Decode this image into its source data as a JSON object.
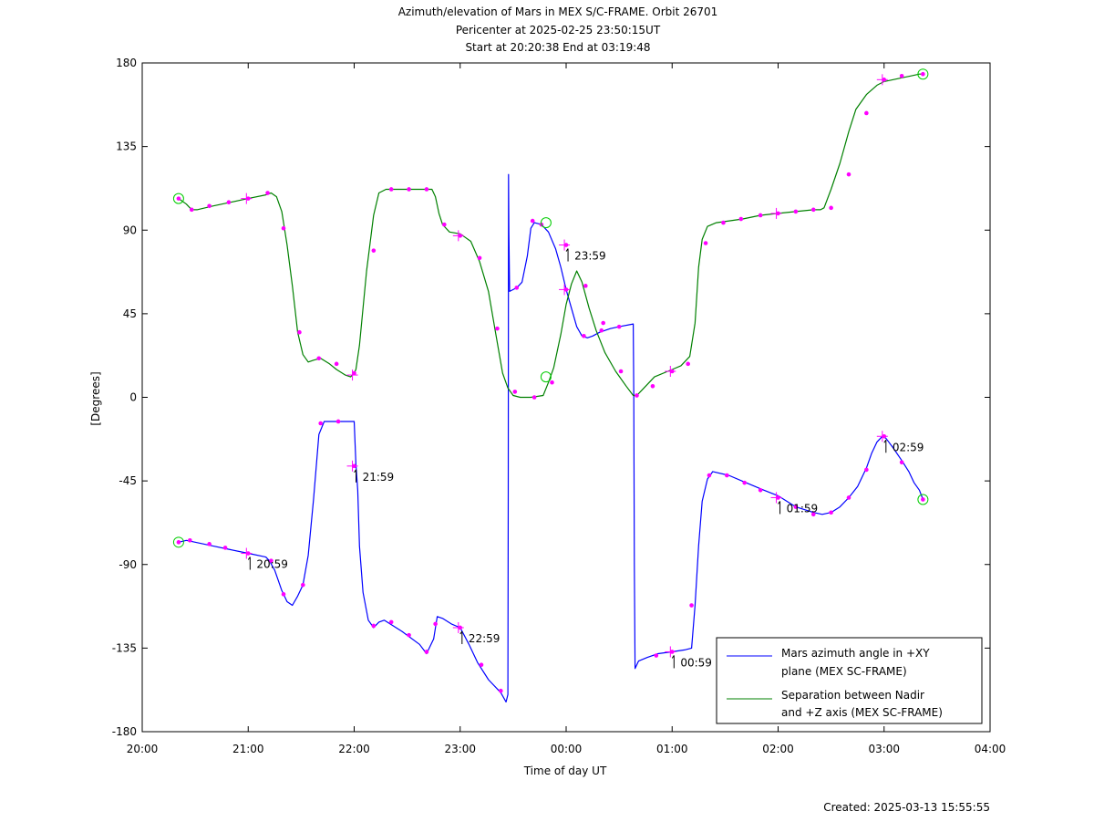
{
  "chart_data": {
    "type": "line",
    "title_lines": [
      "Azimuth/elevation of Mars in MEX S/C-FRAME.  Orbit 26701",
      "Pericenter at 2025-02-25 23:50:15UT",
      "Start at 20:20:38 End at 03:19:48"
    ],
    "xlabel": "Time of day UT",
    "ylabel": "[Degrees]",
    "footer": "Created: 2025-03-13 15:55:55",
    "xlim": [
      0,
      480
    ],
    "ylim": [
      -180,
      180
    ],
    "x_ticks": [
      {
        "v": 0,
        "label": "20:00"
      },
      {
        "v": 60,
        "label": "21:00"
      },
      {
        "v": 120,
        "label": "22:00"
      },
      {
        "v": 180,
        "label": "23:00"
      },
      {
        "v": 240,
        "label": "00:00"
      },
      {
        "v": 300,
        "label": "01:00"
      },
      {
        "v": 360,
        "label": "02:00"
      },
      {
        "v": 420,
        "label": "03:00"
      },
      {
        "v": 480,
        "label": "04:00"
      }
    ],
    "y_ticks": [
      {
        "v": 180,
        "label": "180"
      },
      {
        "v": 135,
        "label": "135"
      },
      {
        "v": 90,
        "label": "90"
      },
      {
        "v": 45,
        "label": "45"
      },
      {
        "v": 0,
        "label": "0"
      },
      {
        "v": -45,
        "label": "-45"
      },
      {
        "v": -90,
        "label": "-90"
      },
      {
        "v": -135,
        "label": "-135"
      },
      {
        "v": -180,
        "label": "-180"
      }
    ],
    "legend_position": "bottom-right",
    "series": [
      {
        "name": "Mars azimuth angle in +XY plane (MEX SC-FRAME)",
        "legend_lines": [
          "Mars azimuth angle in +XY",
          "plane (MEX SC-FRAME)"
        ],
        "color": "#0000ff",
        "points": [
          [
            20.6,
            -78
          ],
          [
            25,
            -77
          ],
          [
            30,
            -78
          ],
          [
            40,
            -80
          ],
          [
            50,
            -82
          ],
          [
            60,
            -84
          ],
          [
            70,
            -86
          ],
          [
            72,
            -88
          ],
          [
            75,
            -93
          ],
          [
            79,
            -104
          ],
          [
            82,
            -110
          ],
          [
            85,
            -112
          ],
          [
            88,
            -107
          ],
          [
            91,
            -101
          ],
          [
            94,
            -85
          ],
          [
            97,
            -55
          ],
          [
            100,
            -20
          ],
          [
            103,
            -13
          ],
          [
            110,
            -13
          ],
          [
            120,
            -13
          ],
          [
            121,
            -36
          ],
          [
            122,
            -50
          ],
          [
            123,
            -80
          ],
          [
            125,
            -105
          ],
          [
            128,
            -120
          ],
          [
            131,
            -124
          ],
          [
            134,
            -121
          ],
          [
            137,
            -120
          ],
          [
            147,
            -126
          ],
          [
            157,
            -133
          ],
          [
            161,
            -138
          ],
          [
            165,
            -130
          ],
          [
            167,
            -118
          ],
          [
            170,
            -119
          ],
          [
            175,
            -122
          ],
          [
            180,
            -124
          ],
          [
            185,
            -133
          ],
          [
            190,
            -143
          ],
          [
            196,
            -152
          ],
          [
            203,
            -159
          ],
          [
            206,
            -164
          ],
          [
            207,
            -160
          ],
          [
            207.2,
            -50
          ],
          [
            207.4,
            120
          ],
          [
            207.6,
            88
          ],
          [
            208,
            57
          ],
          [
            212,
            59
          ],
          [
            215,
            62
          ],
          [
            218,
            76
          ],
          [
            220,
            91
          ],
          [
            222,
            94
          ],
          [
            226,
            93
          ],
          [
            230,
            89
          ],
          [
            234,
            80
          ],
          [
            237,
            70
          ],
          [
            240,
            58
          ],
          [
            243,
            48
          ],
          [
            246,
            38
          ],
          [
            249,
            33
          ],
          [
            252,
            32
          ],
          [
            255,
            33
          ],
          [
            259,
            35
          ],
          [
            265,
            37
          ],
          [
            270,
            38
          ],
          [
            278,
            39.5
          ],
          [
            278.3,
            0
          ],
          [
            278.6,
            -90
          ],
          [
            279,
            -146
          ],
          [
            281,
            -142
          ],
          [
            286,
            -140
          ],
          [
            292,
            -138
          ],
          [
            300,
            -137
          ],
          [
            307,
            -136
          ],
          [
            311,
            -135
          ],
          [
            313,
            -112
          ],
          [
            315,
            -80
          ],
          [
            317,
            -56
          ],
          [
            320,
            -44
          ],
          [
            323,
            -40
          ],
          [
            332,
            -42
          ],
          [
            342,
            -46
          ],
          [
            352,
            -50
          ],
          [
            360,
            -53
          ],
          [
            365,
            -56
          ],
          [
            370,
            -59
          ],
          [
            380,
            -62
          ],
          [
            385,
            -63
          ],
          [
            390,
            -62
          ],
          [
            395,
            -59
          ],
          [
            400,
            -54
          ],
          [
            405,
            -48
          ],
          [
            410,
            -38
          ],
          [
            413,
            -30
          ],
          [
            416,
            -24
          ],
          [
            419,
            -21
          ],
          [
            421,
            -22
          ],
          [
            425,
            -27
          ],
          [
            430,
            -34
          ],
          [
            434,
            -40
          ],
          [
            437,
            -46
          ],
          [
            440,
            -50
          ],
          [
            442,
            -55
          ]
        ]
      },
      {
        "name": "Separation between Nadir and +Z axis (MEX SC-FRAME)",
        "legend_lines": [
          "Separation between Nadir",
          "and +Z axis (MEX SC-FRAME)"
        ],
        "color": "#008000",
        "points": [
          [
            20.6,
            107
          ],
          [
            25,
            104
          ],
          [
            28,
            101
          ],
          [
            31,
            101
          ],
          [
            40,
            103
          ],
          [
            50,
            105
          ],
          [
            60,
            107
          ],
          [
            70,
            109
          ],
          [
            73,
            110
          ],
          [
            76,
            108
          ],
          [
            79,
            100
          ],
          [
            82,
            82
          ],
          [
            85,
            60
          ],
          [
            88,
            35
          ],
          [
            91,
            23
          ],
          [
            94,
            19
          ],
          [
            97,
            20
          ],
          [
            101,
            21
          ],
          [
            106,
            18
          ],
          [
            110,
            15
          ],
          [
            115,
            12
          ],
          [
            118,
            11
          ],
          [
            120,
            13
          ],
          [
            121,
            15
          ],
          [
            123,
            28
          ],
          [
            127,
            68
          ],
          [
            131,
            98
          ],
          [
            134,
            110
          ],
          [
            138,
            112
          ],
          [
            148,
            112
          ],
          [
            158,
            112
          ],
          [
            164,
            112
          ],
          [
            166,
            108
          ],
          [
            168,
            99
          ],
          [
            170,
            93
          ],
          [
            174,
            89
          ],
          [
            180,
            88
          ],
          [
            186,
            84
          ],
          [
            191,
            73
          ],
          [
            196,
            57
          ],
          [
            200,
            35
          ],
          [
            204,
            13
          ],
          [
            207,
            5
          ],
          [
            210,
            1
          ],
          [
            214,
            0
          ],
          [
            220,
            0
          ],
          [
            227,
            1
          ],
          [
            230,
            8
          ],
          [
            233,
            16
          ],
          [
            237,
            34
          ],
          [
            240,
            50
          ],
          [
            243,
            61
          ],
          [
            246,
            68
          ],
          [
            249,
            62
          ],
          [
            253,
            48
          ],
          [
            257,
            36
          ],
          [
            262,
            24
          ],
          [
            268,
            14
          ],
          [
            274,
            6
          ],
          [
            278,
            1
          ],
          [
            280,
            1
          ],
          [
            283,
            4
          ],
          [
            290,
            11
          ],
          [
            300,
            15
          ],
          [
            305,
            17
          ],
          [
            310,
            22
          ],
          [
            313,
            40
          ],
          [
            315,
            70
          ],
          [
            317,
            85
          ],
          [
            320,
            92
          ],
          [
            325,
            94
          ],
          [
            340,
            96
          ],
          [
            350,
            98
          ],
          [
            360,
            99
          ],
          [
            370,
            100
          ],
          [
            380,
            101
          ],
          [
            384,
            101
          ],
          [
            386,
            102
          ],
          [
            390,
            112
          ],
          [
            395,
            126
          ],
          [
            400,
            143
          ],
          [
            404,
            155
          ],
          [
            410,
            163
          ],
          [
            416,
            168
          ],
          [
            420,
            170
          ],
          [
            430,
            172
          ],
          [
            435,
            173
          ],
          [
            440,
            174
          ],
          [
            442,
            174
          ]
        ]
      }
    ],
    "markers": [
      {
        "x": 20.6,
        "y": -78
      },
      {
        "x": 27,
        "y": -77
      },
      {
        "x": 38,
        "y": -79
      },
      {
        "x": 47,
        "y": -81
      },
      {
        "x": 60,
        "y": -84
      },
      {
        "x": 73,
        "y": -88
      },
      {
        "x": 80,
        "y": -106
      },
      {
        "x": 91,
        "y": -101
      },
      {
        "x": 101,
        "y": -14
      },
      {
        "x": 111,
        "y": -13
      },
      {
        "x": 120,
        "y": -37
      },
      {
        "x": 131,
        "y": -123
      },
      {
        "x": 141,
        "y": -121
      },
      {
        "x": 151,
        "y": -128
      },
      {
        "x": 161,
        "y": -137
      },
      {
        "x": 166,
        "y": -122
      },
      {
        "x": 180,
        "y": -124
      },
      {
        "x": 192,
        "y": -144
      },
      {
        "x": 203,
        "y": -158
      },
      {
        "x": 212,
        "y": 59
      },
      {
        "x": 221,
        "y": 95
      },
      {
        "x": 226,
        "y": 93
      },
      {
        "x": 240,
        "y": 82
      },
      {
        "x": 250,
        "y": 33
      },
      {
        "x": 260,
        "y": 36
      },
      {
        "x": 270,
        "y": 38
      },
      {
        "x": 291,
        "y": -139
      },
      {
        "x": 300,
        "y": -137
      },
      {
        "x": 311,
        "y": -112
      },
      {
        "x": 321,
        "y": -42
      },
      {
        "x": 331,
        "y": -42
      },
      {
        "x": 341,
        "y": -46
      },
      {
        "x": 350,
        "y": -50
      },
      {
        "x": 360,
        "y": -54
      },
      {
        "x": 370,
        "y": -59
      },
      {
        "x": 380,
        "y": -63
      },
      {
        "x": 390,
        "y": -62
      },
      {
        "x": 400,
        "y": -54
      },
      {
        "x": 410,
        "y": -39
      },
      {
        "x": 420,
        "y": -21
      },
      {
        "x": 430,
        "y": -35
      },
      {
        "x": 442,
        "y": -55
      },
      {
        "x": 20.6,
        "y": 107
      },
      {
        "x": 28,
        "y": 101
      },
      {
        "x": 38,
        "y": 103
      },
      {
        "x": 49,
        "y": 105
      },
      {
        "x": 60,
        "y": 107
      },
      {
        "x": 71,
        "y": 110
      },
      {
        "x": 80,
        "y": 91
      },
      {
        "x": 89,
        "y": 35
      },
      {
        "x": 100,
        "y": 21
      },
      {
        "x": 110,
        "y": 18
      },
      {
        "x": 120,
        "y": 13
      },
      {
        "x": 131,
        "y": 79
      },
      {
        "x": 141,
        "y": 112
      },
      {
        "x": 151,
        "y": 112
      },
      {
        "x": 161,
        "y": 112
      },
      {
        "x": 171,
        "y": 93
      },
      {
        "x": 180,
        "y": 87
      },
      {
        "x": 191,
        "y": 75
      },
      {
        "x": 201,
        "y": 37
      },
      {
        "x": 211,
        "y": 3
      },
      {
        "x": 222,
        "y": 0
      },
      {
        "x": 232,
        "y": 8
      },
      {
        "x": 240,
        "y": 58
      },
      {
        "x": 251,
        "y": 60
      },
      {
        "x": 261,
        "y": 40
      },
      {
        "x": 271,
        "y": 14
      },
      {
        "x": 280,
        "y": 1
      },
      {
        "x": 289,
        "y": 6
      },
      {
        "x": 300,
        "y": 14
      },
      {
        "x": 309,
        "y": 18
      },
      {
        "x": 319,
        "y": 83
      },
      {
        "x": 329,
        "y": 94
      },
      {
        "x": 339,
        "y": 96
      },
      {
        "x": 350,
        "y": 98
      },
      {
        "x": 360,
        "y": 99
      },
      {
        "x": 370,
        "y": 100
      },
      {
        "x": 380,
        "y": 101
      },
      {
        "x": 390,
        "y": 102
      },
      {
        "x": 400,
        "y": 120
      },
      {
        "x": 410,
        "y": 153
      },
      {
        "x": 420,
        "y": 171
      },
      {
        "x": 430,
        "y": 173
      },
      {
        "x": 442,
        "y": 174
      }
    ],
    "hour_crosses": [
      {
        "x": 59,
        "y": -84
      },
      {
        "x": 119,
        "y": -37
      },
      {
        "x": 179,
        "y": -124
      },
      {
        "x": 239,
        "y": 82
      },
      {
        "x": 299,
        "y": -137
      },
      {
        "x": 359,
        "y": -54
      },
      {
        "x": 419,
        "y": -21
      },
      {
        "x": 59,
        "y": 107
      },
      {
        "x": 119,
        "y": 12
      },
      {
        "x": 179,
        "y": 87
      },
      {
        "x": 239,
        "y": 58
      },
      {
        "x": 299,
        "y": 14
      },
      {
        "x": 359,
        "y": 99
      },
      {
        "x": 419,
        "y": 171
      }
    ],
    "circles": [
      {
        "x": 20.6,
        "y": -78
      },
      {
        "x": 20.6,
        "y": 107
      },
      {
        "x": 442,
        "y": -55
      },
      {
        "x": 442,
        "y": 174
      },
      {
        "x": 228.6,
        "y": 94
      },
      {
        "x": 228.6,
        "y": 11
      }
    ],
    "annotations": [
      {
        "x": 59,
        "y": -84,
        "label": "20:59"
      },
      {
        "x": 119,
        "y": -37,
        "label": "21:59"
      },
      {
        "x": 179,
        "y": -124,
        "label": "22:59"
      },
      {
        "x": 239,
        "y": 82,
        "label": "23:59"
      },
      {
        "x": 299,
        "y": -137,
        "label": "00:59"
      },
      {
        "x": 359,
        "y": -54,
        "label": "01:59"
      },
      {
        "x": 419,
        "y": -21,
        "label": "02:59"
      }
    ]
  }
}
